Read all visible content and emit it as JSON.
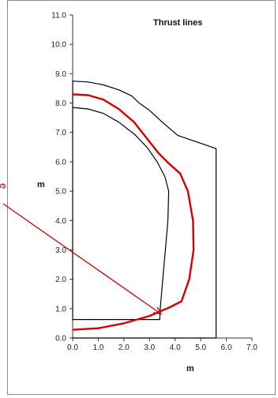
{
  "chart_data": {
    "type": "line",
    "title": "Thrust lines",
    "xlabel": "m",
    "ylabel": "m",
    "xlim": [
      0,
      7
    ],
    "ylim": [
      0,
      11
    ],
    "x_ticks": [
      "0.0",
      "1.0",
      "2.0",
      "3.0",
      "4.0",
      "5.0",
      "6.0",
      "7.0"
    ],
    "y_ticks": [
      "0.0",
      "1.0",
      "2.0",
      "3.0",
      "4.0",
      "5.0",
      "6.0",
      "7.0",
      "8.0",
      "9.0",
      "10.0",
      "11.0"
    ],
    "grid": false,
    "series": [
      {
        "color": "#000000",
        "width": 1.2,
        "points": [
          [
            0,
            0.63
          ],
          [
            0,
            8.75
          ],
          [
            0.6,
            8.72
          ],
          [
            1.2,
            8.62
          ],
          [
            1.8,
            8.45
          ],
          [
            2.3,
            8.25
          ],
          [
            2.6,
            8.0
          ],
          [
            3.0,
            7.75
          ],
          [
            3.5,
            7.35
          ],
          [
            4.1,
            6.9
          ],
          [
            5.6,
            6.45
          ],
          [
            5.6,
            0
          ],
          [
            0,
            0
          ]
        ]
      },
      {
        "color": "#000000",
        "width": 1.2,
        "points": [
          [
            0,
            7.85
          ],
          [
            0.6,
            7.8
          ],
          [
            1.2,
            7.65
          ],
          [
            1.8,
            7.35
          ],
          [
            2.4,
            6.95
          ],
          [
            2.9,
            6.5
          ],
          [
            3.3,
            6.0
          ],
          [
            3.6,
            5.5
          ],
          [
            3.75,
            5.0
          ],
          [
            3.72,
            4.0
          ],
          [
            3.62,
            3.0
          ],
          [
            3.52,
            2.0
          ],
          [
            3.42,
            1.0
          ],
          [
            3.4,
            0.63
          ],
          [
            0,
            0.63
          ]
        ]
      },
      {
        "color": "#d40000",
        "width": 2.4,
        "points": [
          [
            0,
            8.3
          ],
          [
            0.6,
            8.27
          ],
          [
            1.2,
            8.12
          ],
          [
            1.8,
            7.8
          ],
          [
            2.4,
            7.35
          ],
          [
            2.9,
            6.8
          ],
          [
            3.35,
            6.3
          ],
          [
            3.75,
            5.95
          ],
          [
            4.2,
            5.6
          ],
          [
            4.5,
            5.0
          ],
          [
            4.7,
            4.0
          ],
          [
            4.72,
            3.0
          ],
          [
            4.55,
            2.0
          ],
          [
            4.25,
            1.25
          ],
          [
            3.8,
            1.05
          ],
          [
            3.0,
            0.75
          ],
          [
            2.0,
            0.5
          ],
          [
            1.0,
            0.33
          ],
          [
            0,
            0.28
          ]
        ]
      }
    ],
    "arrow": {
      "color": "#d40000",
      "label_char": "e",
      "to": [
        3.45,
        0.82
      ]
    }
  }
}
